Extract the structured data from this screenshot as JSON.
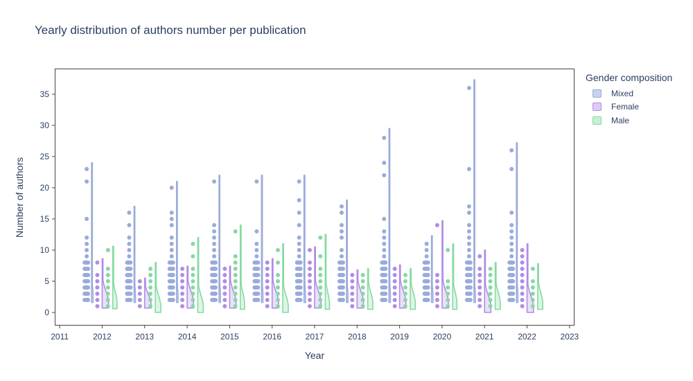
{
  "chart_data": {
    "type": "violin",
    "title": "Yearly distribution of authors number per publication",
    "xlabel": "Year",
    "ylabel": "Number of authors",
    "xlim": [
      2010.9,
      2023.1
    ],
    "ylim": [
      -2,
      39
    ],
    "x_ticks": [
      2011,
      2012,
      2013,
      2014,
      2015,
      2016,
      2017,
      2018,
      2019,
      2020,
      2021,
      2022,
      2023
    ],
    "y_ticks": [
      0,
      5,
      10,
      15,
      20,
      25,
      30,
      35
    ],
    "grid": false,
    "legend_title": "Gender composition",
    "legend_position": "right",
    "series": [
      {
        "name": "Mixed",
        "color": "#9aabdb",
        "fill": "#c9d3ee",
        "offset": -0.25,
        "years": [
          2012,
          2013,
          2014,
          2015,
          2016,
          2017,
          2018,
          2019,
          2020,
          2021,
          2022
        ],
        "points": [
          [
            2,
            3,
            4,
            5,
            6,
            7,
            8,
            9,
            10,
            11,
            12,
            15,
            21,
            23
          ],
          [
            2,
            3,
            4,
            5,
            6,
            7,
            8,
            9,
            10,
            11,
            12,
            14,
            16
          ],
          [
            2,
            3,
            4,
            5,
            6,
            7,
            8,
            9,
            10,
            11,
            12,
            14,
            15,
            16,
            20
          ],
          [
            2,
            3,
            4,
            5,
            6,
            7,
            8,
            9,
            10,
            11,
            12,
            13,
            14,
            21
          ],
          [
            2,
            3,
            4,
            5,
            6,
            7,
            8,
            9,
            10,
            11,
            13,
            21
          ],
          [
            2,
            3,
            4,
            5,
            6,
            7,
            8,
            9,
            10,
            11,
            12,
            14,
            16,
            18,
            21
          ],
          [
            2,
            3,
            4,
            5,
            6,
            7,
            8,
            9,
            10,
            12,
            13,
            14,
            16,
            17
          ],
          [
            2,
            3,
            4,
            5,
            6,
            7,
            8,
            9,
            10,
            11,
            12,
            13,
            15,
            22,
            24,
            28
          ],
          [
            2,
            3,
            4,
            5,
            6,
            7,
            8,
            9,
            10,
            11
          ],
          [
            2,
            3,
            4,
            5,
            6,
            7,
            8,
            9,
            10,
            11,
            12,
            13,
            14,
            16,
            17,
            23,
            36
          ],
          [
            2,
            3,
            4,
            5,
            6,
            7,
            8,
            9,
            10,
            11,
            12,
            13,
            14,
            16,
            23,
            26
          ]
        ],
        "max": [
          24,
          17,
          21,
          22,
          22,
          22,
          18,
          29.5,
          12.3,
          37.3,
          27.2
        ],
        "min": [
          1.6,
          1.6,
          1.6,
          1.6,
          1.6,
          1.6,
          1.6,
          1.6,
          1.6,
          1.6,
          1.6
        ],
        "width": [
          0.035,
          0.035,
          0.035,
          0.035,
          0.035,
          0.035,
          0.035,
          0.035,
          0.035,
          0.035,
          0.035
        ]
      },
      {
        "name": "Female",
        "color": "#b08ce6",
        "fill": "#dccbf5",
        "offset": 0,
        "years": [
          2012,
          2013,
          2014,
          2015,
          2016,
          2017,
          2018,
          2019,
          2020,
          2021,
          2022
        ],
        "points": [
          [
            1,
            2,
            3,
            4,
            5,
            6,
            8
          ],
          [
            1,
            2,
            3,
            4,
            5
          ],
          [
            1,
            2,
            3,
            4,
            5,
            6,
            7
          ],
          [
            1,
            2,
            3,
            4,
            5,
            6,
            7
          ],
          [
            1,
            2,
            3,
            4,
            5,
            6,
            7,
            8
          ],
          [
            1,
            2,
            3,
            4,
            5,
            6,
            7,
            8,
            10
          ],
          [
            1,
            2,
            3,
            4,
            5,
            6
          ],
          [
            1,
            2,
            3,
            4,
            5,
            6,
            7
          ],
          [
            1,
            2,
            3,
            4,
            5,
            6,
            14
          ],
          [
            1,
            2,
            3,
            4,
            5,
            6,
            7,
            9
          ],
          [
            1,
            2,
            3,
            4,
            5,
            6,
            7,
            8,
            9,
            10
          ]
        ],
        "max": [
          8.6,
          5.5,
          7.4,
          7.4,
          8.6,
          10.5,
          6.8,
          7.6,
          14.7,
          10,
          11
        ],
        "min": [
          0.7,
          0.7,
          0.7,
          0.7,
          0.7,
          0.7,
          0.7,
          0.7,
          0.7,
          0,
          0
        ],
        "width": [
          0.15,
          0.15,
          0.15,
          0.15,
          0.15,
          0.15,
          0.15,
          0.15,
          0.15,
          0.15,
          0.15
        ]
      },
      {
        "name": "Male",
        "color": "#86d9a1",
        "fill": "#c8efd4",
        "offset": 0.25,
        "years": [
          2012,
          2013,
          2014,
          2015,
          2016,
          2017,
          2018,
          2019,
          2020,
          2021,
          2022
        ],
        "points": [
          [
            1,
            2,
            3,
            4,
            5,
            6,
            7,
            10
          ],
          [
            1,
            2,
            3,
            4,
            5,
            6,
            7
          ],
          [
            1,
            2,
            3,
            4,
            5,
            6,
            7,
            9,
            11
          ],
          [
            1,
            2,
            3,
            4,
            5,
            6,
            7,
            8,
            9,
            13
          ],
          [
            1,
            2,
            3,
            4,
            5,
            6,
            8,
            10
          ],
          [
            1,
            2,
            3,
            4,
            5,
            6,
            7,
            9,
            12
          ],
          [
            1,
            2,
            3,
            4,
            5,
            6
          ],
          [
            1,
            2,
            3,
            4,
            5,
            6
          ],
          [
            1,
            2,
            3,
            4,
            5,
            10
          ],
          [
            1,
            2,
            3,
            4,
            5,
            6,
            7
          ],
          [
            1,
            2,
            3,
            4,
            5,
            7
          ]
        ],
        "max": [
          10.6,
          8,
          12,
          14,
          11,
          12.5,
          7,
          7,
          11,
          8,
          7.8
        ],
        "min": [
          0.6,
          0,
          0,
          0.5,
          0,
          0.5,
          0.5,
          0.5,
          0.5,
          0.5,
          0.5
        ],
        "width": [
          0.1,
          0.13,
          0.13,
          0.1,
          0.13,
          0.1,
          0.12,
          0.12,
          0.1,
          0.12,
          0.12
        ]
      }
    ]
  }
}
